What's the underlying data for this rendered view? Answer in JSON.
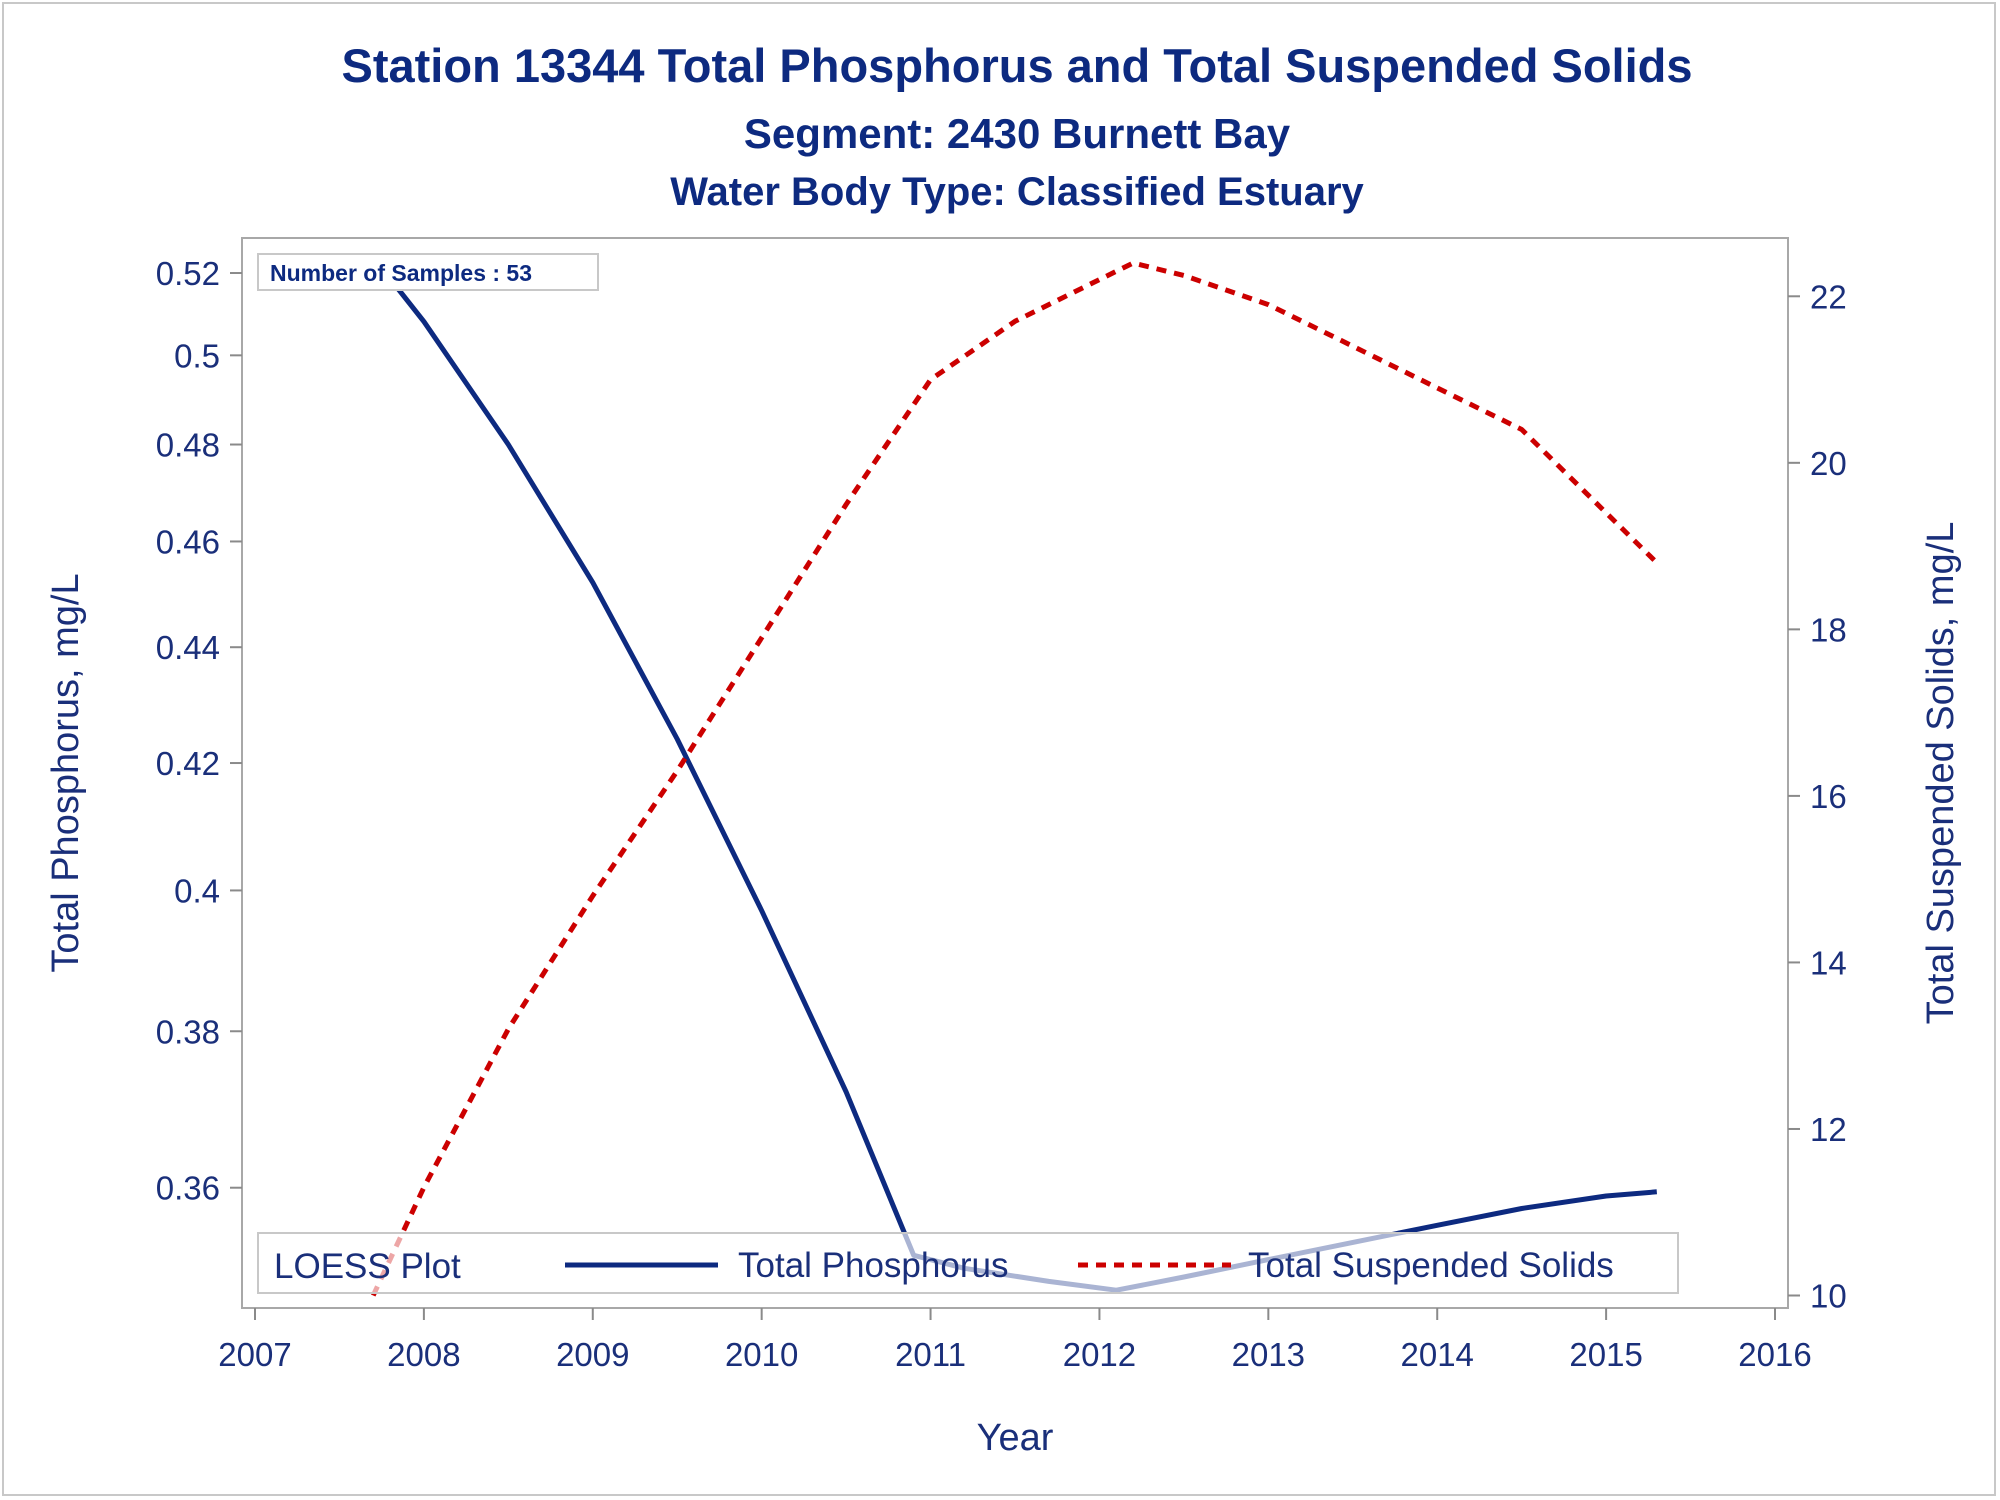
{
  "chart_data": {
    "type": "line",
    "title": "Station 13344  Total Phosphorus and Total Suspended Solids",
    "subtitle": "Segment: 2430  Burnett Bay",
    "subtitle2": "Water Body Type: Classified Estuary",
    "xlabel": "Year",
    "ylabel_left": "Total Phosphorus, mg/L",
    "ylabel_right": "Total Suspended Solids, mg/L",
    "x_ticks": [
      "2007",
      "2008",
      "2009",
      "2010",
      "2011",
      "2012",
      "2013",
      "2014",
      "2015",
      "2016"
    ],
    "y_left_ticks": [
      "0.36",
      "0.38",
      "0.4",
      "0.42",
      "0.44",
      "0.46",
      "0.48",
      "0.5",
      "0.52"
    ],
    "y_right_ticks": [
      "10",
      "12",
      "14",
      "16",
      "18",
      "20",
      "22"
    ],
    "xlim": [
      2007,
      2016
    ],
    "y_left_scale": "reciprocal",
    "y_left_lim": [
      0.346,
      0.529
    ],
    "y_right_lim": [
      9.85,
      22.7
    ],
    "inset_text": "Number of Samples : 53",
    "legend": {
      "title": "LOESS Plot",
      "position": "bottom-inside",
      "entries": [
        "Total Phosphorus",
        "Total Suspended Solids"
      ]
    },
    "series": [
      {
        "name": "Total Phosphorus",
        "axis": "left",
        "color": "#0d2a80",
        "style": "solid",
        "x": [
          2007.7,
          2008.0,
          2008.5,
          2009.0,
          2009.5,
          2010.0,
          2010.5,
          2010.9,
          2011.2,
          2011.7,
          2012.1,
          2012.5,
          2013.0,
          2013.5,
          2014.0,
          2014.5,
          2015.0,
          2015.3
        ],
        "y": [
          0.524,
          0.508,
          0.48,
          0.452,
          0.424,
          0.397,
          0.372,
          0.352,
          0.3505,
          0.349,
          0.348,
          0.3495,
          0.3515,
          0.3535,
          0.3555,
          0.3575,
          0.359,
          0.3595
        ]
      },
      {
        "name": "Total Suspended Solids",
        "axis": "right",
        "color": "#cc0000",
        "style": "dotted",
        "x": [
          2007.7,
          2008.0,
          2008.5,
          2009.0,
          2009.5,
          2010.0,
          2010.5,
          2011.0,
          2011.5,
          2012.0,
          2012.2,
          2012.5,
          2013.0,
          2013.5,
          2014.0,
          2014.5,
          2015.0,
          2015.3
        ],
        "y": [
          10.0,
          11.3,
          13.2,
          14.8,
          16.3,
          17.9,
          19.5,
          21.0,
          21.7,
          22.2,
          22.4,
          22.25,
          21.9,
          21.4,
          20.9,
          20.4,
          19.4,
          18.8
        ]
      }
    ]
  }
}
